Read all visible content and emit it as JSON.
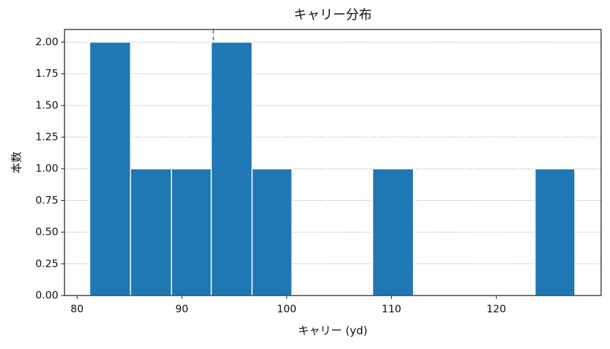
{
  "chart_data": {
    "type": "histogram",
    "title": "キャリー分布",
    "x_label": "キャリー (yd)",
    "y_label": "本数",
    "bins": [
      81.2,
      85.1,
      89.0,
      92.8,
      96.7,
      100.5,
      104.4,
      108.2,
      112.1,
      116.0,
      119.8,
      123.7,
      127.5
    ],
    "values": [
      2,
      1,
      1,
      2,
      1,
      0,
      0,
      1,
      0,
      0,
      0,
      1
    ],
    "color": "#1f77b4",
    "edge_color": "#ffffff",
    "reference_line": 93.0,
    "xlim": [
      78.8,
      130.0
    ],
    "xticks": [
      80,
      90,
      100,
      110,
      120
    ],
    "ylim": [
      0,
      2.1
    ],
    "yticks": [
      {
        "value": 0,
        "label": "0.00"
      },
      {
        "value": 0.25,
        "label": "0.25"
      },
      {
        "value": 0.5,
        "label": "0.50"
      },
      {
        "value": 0.75,
        "label": "0.75"
      },
      {
        "value": 1,
        "label": "1.00"
      },
      {
        "value": 1.25,
        "label": "1.25"
      },
      {
        "value": 1.5,
        "label": "1.50"
      },
      {
        "value": 1.75,
        "label": "1.75"
      },
      {
        "value": 2,
        "label": "2.00"
      }
    ],
    "grid": true
  }
}
